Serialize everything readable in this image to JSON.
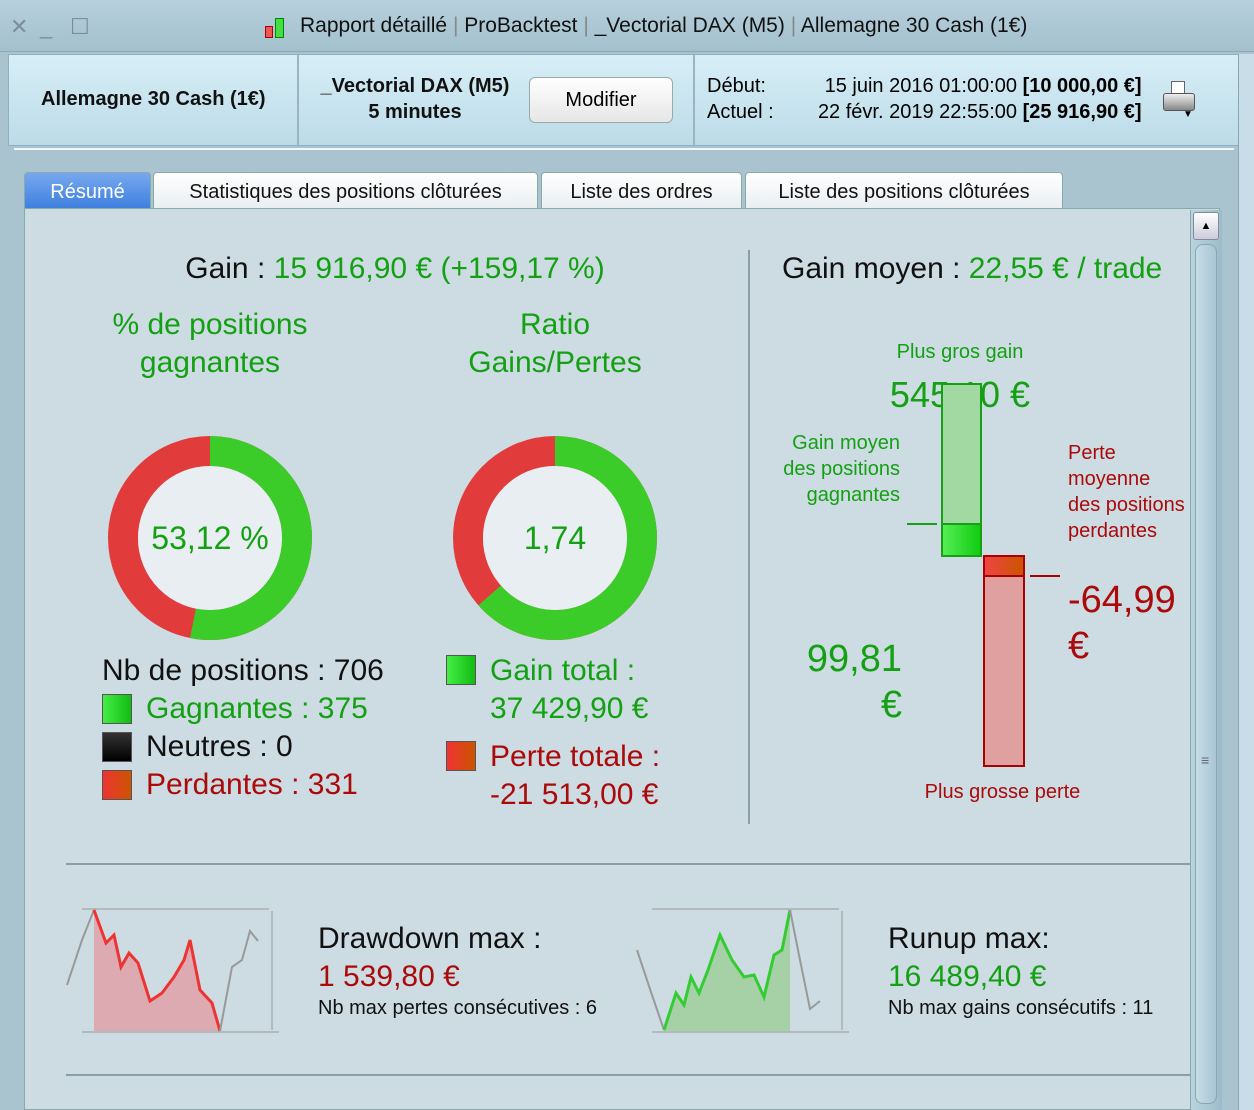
{
  "window": {
    "title_parts": [
      "Rapport détaillé",
      "ProBacktest",
      "_Vectorial DAX (M5)",
      "Allemagne 30 Cash (1€)"
    ],
    "separator": "|",
    "close": "✕",
    "minimize": "_",
    "maximize": "☐"
  },
  "header": {
    "instrument": "Allemagne 30 Cash (1€)",
    "system": "_Vectorial DAX (M5)",
    "timeframe": "5 minutes",
    "modify_label": "Modifier",
    "start_label": "Début:",
    "start_date": "15 juin 2016 01:00:00",
    "start_capital": "[10 000,00 €]",
    "current_label": "Actuel :",
    "current_date": "22 févr. 2019 22:55:00",
    "current_capital": "[25 916,90 €]"
  },
  "tabs": [
    {
      "label": "Résumé",
      "active": true
    },
    {
      "label": "Statistiques des positions clôturées"
    },
    {
      "label": "Liste des ordres"
    },
    {
      "label": "Liste des positions clôturées"
    }
  ],
  "summary": {
    "gain_label": "Gain :",
    "gain_value": "15 916,90 € (+159,17 %)",
    "win_pct_title": "% de positions gagnantes",
    "win_pct": "53,12 %",
    "win_pct_value": 53.12,
    "ratio_title": "Ratio Gains/Pertes",
    "ratio": "1,74",
    "ratio_green_fraction": 0.635,
    "nb_positions": "Nb de positions : 706",
    "winners": "Gagnantes : 375",
    "neutral": "Neutres : 0",
    "losers": "Perdantes : 331",
    "total_gain_label": "Gain total :",
    "total_gain": "37 429,90 €",
    "total_loss_label": "Perte totale :",
    "total_loss": "-21 513,00 €",
    "avg_gain_label": "Gain moyen :",
    "avg_gain": "22,55 € / trade",
    "biggest_gain_label": "Plus gros gain",
    "biggest_gain": "545,10 €",
    "avg_win_label": "Gain moyen des positions gagnantes",
    "avg_win": "99,81 €",
    "avg_loss_label": "Perte moyenne des positions perdantes",
    "avg_loss": "-64,99 €",
    "biggest_loss_label": "Plus grosse perte"
  },
  "drawdown": {
    "label": "Drawdown max :",
    "value": "1 539,80 €",
    "consec": "Nb max pertes consécutives : 6"
  },
  "runup": {
    "label": "Runup max:",
    "value": "16 489,40 €",
    "consec": "Nb max gains consécutifs : 11"
  },
  "colors": {
    "green": "#13a012",
    "red": "#aa0a0a",
    "tab_active": "#3d7fde"
  }
}
